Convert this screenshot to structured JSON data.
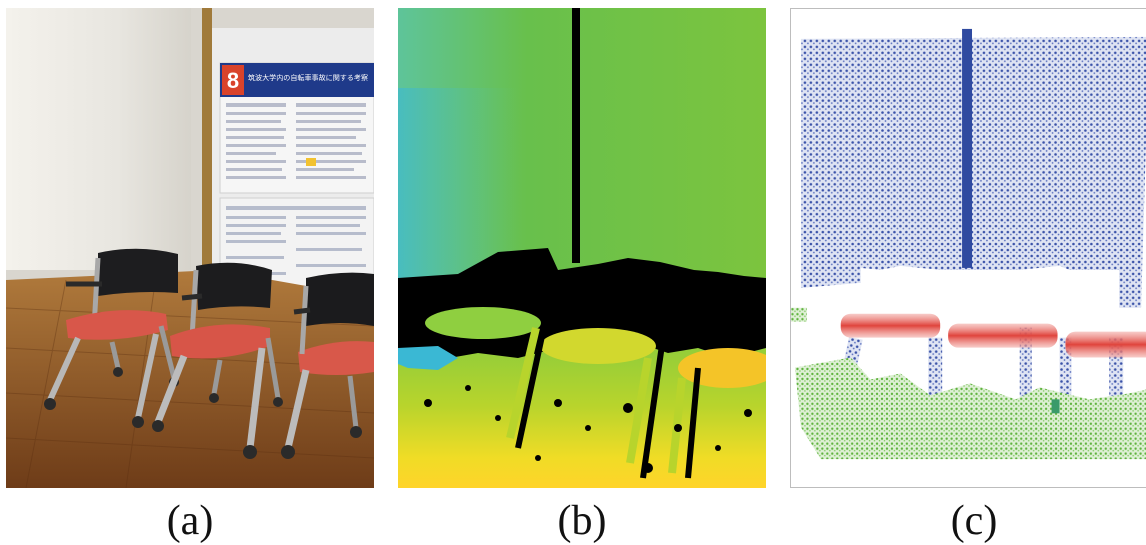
{
  "figure": {
    "panels": [
      {
        "id": "a",
        "caption": "(a)",
        "kind": "rgb-photo"
      },
      {
        "id": "b",
        "caption": "(b)",
        "kind": "depth-map"
      },
      {
        "id": "c",
        "caption": "(c)",
        "kind": "segmented-point-cloud"
      }
    ],
    "poster": {
      "number": "8",
      "title": "筑波大学内の自転車事故に関する考察"
    },
    "colors": {
      "depth_far": "#6cc04a",
      "depth_near": "#ffd22e",
      "depth_missing": "#000000",
      "cloud_wall": "#3a52a8",
      "cloud_floor": "#5fb33e",
      "cloud_seat": "#e0443c",
      "chair_seat": "#e05a4e",
      "floor_wood": "#8a5224"
    }
  }
}
